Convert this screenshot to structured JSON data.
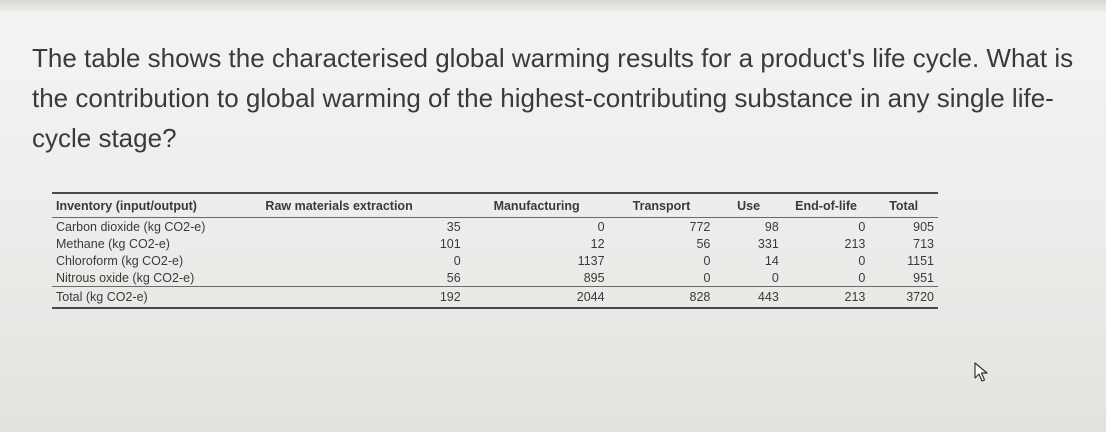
{
  "question": "The table shows the characterised global warming results for a product's life cycle. What is the contribution to global warming of the highest-contributing substance in any single life-cycle stage?",
  "table": {
    "headers": [
      "Inventory (input/output)",
      "Raw materials extraction",
      "Manufacturing",
      "Transport",
      "Use",
      "End-of-life",
      "Total"
    ],
    "rows": [
      [
        "Carbon dioxide (kg CO2-e)",
        "35",
        "0",
        "772",
        "98",
        "0",
        "905"
      ],
      [
        "Methane (kg CO2-e)",
        "101",
        "12",
        "56",
        "331",
        "213",
        "713"
      ],
      [
        "Chloroform (kg CO2-e)",
        "0",
        "1137",
        "0",
        "14",
        "0",
        "1151"
      ],
      [
        "Nitrous oxide (kg CO2-e)",
        "56",
        "895",
        "0",
        "0",
        "0",
        "951"
      ]
    ],
    "total_row": [
      "Total (kg CO2-e)",
      "192",
      "2044",
      "828",
      "443",
      "213",
      "3720"
    ]
  },
  "icons": {
    "cursor": "mouse-pointer-icon"
  }
}
